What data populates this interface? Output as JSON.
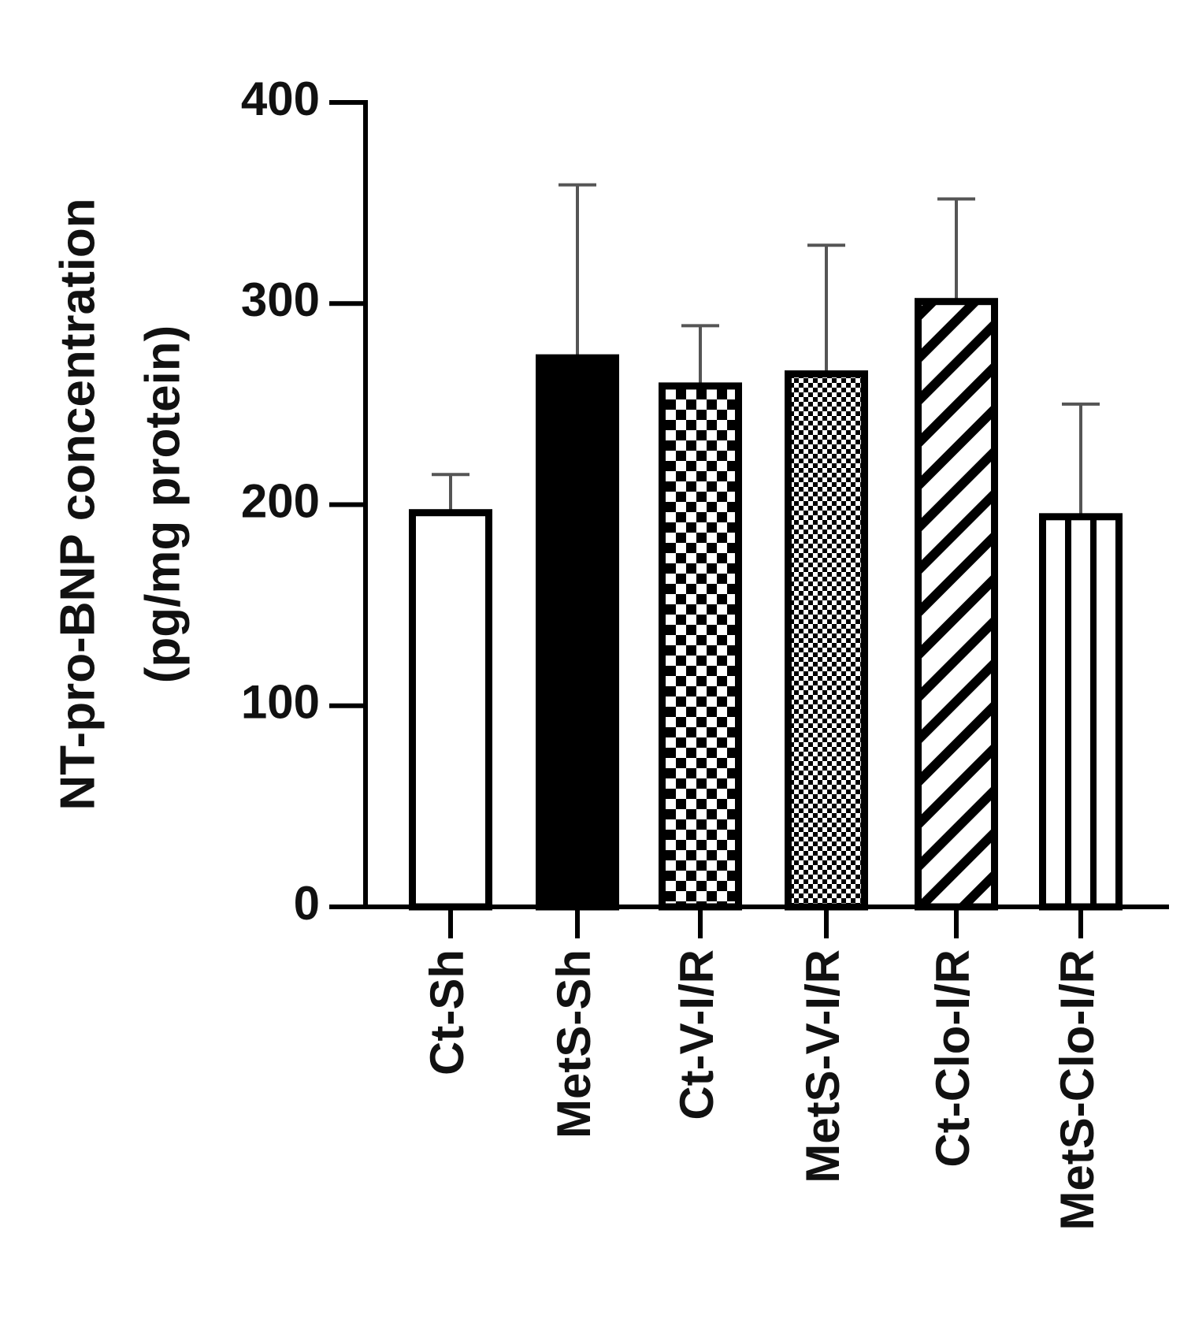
{
  "chart_data": {
    "type": "bar",
    "ylabel_lines": [
      "NT-pro-BNP concentration",
      "(pg/mg protein)"
    ],
    "categories": [
      "Ct-Sh",
      "MetS-Sh",
      "Ct-V-I/R",
      "MetS-V-I/R",
      "Ct-Clo-I/R",
      "MetS-Clo-I/R"
    ],
    "values": [
      196,
      273,
      259,
      265,
      301,
      194
    ],
    "errors": [
      19,
      86,
      30,
      64,
      51,
      56
    ],
    "patterns": [
      "none",
      "solid",
      "checker",
      "fine-checker",
      "diagonal",
      "vertical"
    ],
    "color": "#000000",
    "ylim": [
      0,
      400
    ],
    "yticks": [
      0,
      100,
      200,
      300,
      400
    ],
    "grid": false
  }
}
